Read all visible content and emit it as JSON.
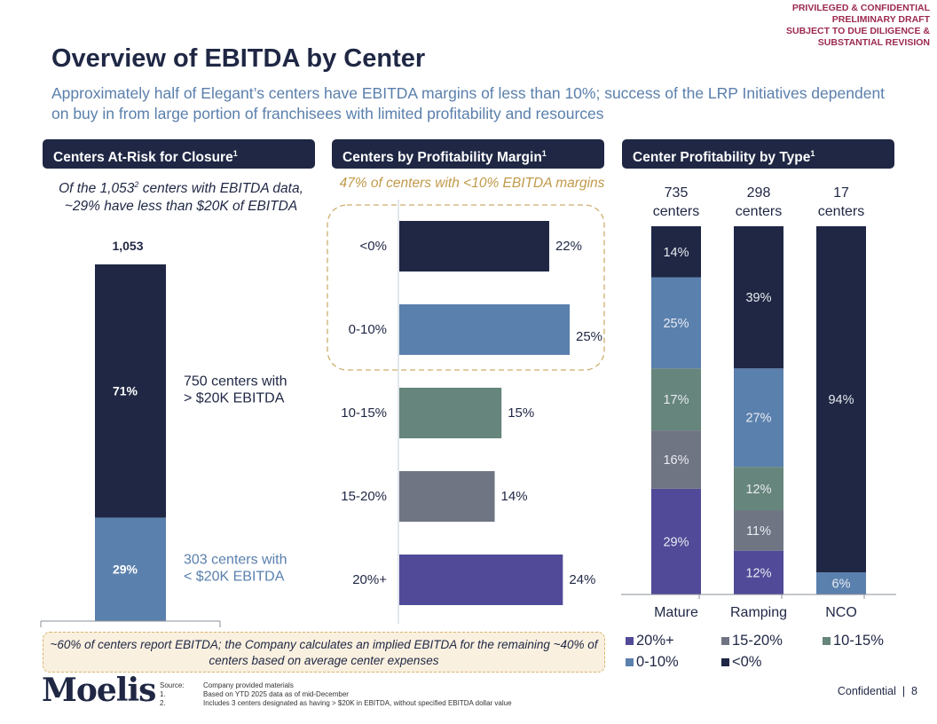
{
  "confidentiality_stamp": [
    "PRIVILEGED & CONFIDENTIAL",
    "PRELIMINARY DRAFT",
    "SUBJECT TO DUE DILIGENCE &",
    "SUBSTANTIAL REVISION"
  ],
  "title": "Overview of EBITDA by Center",
  "subtitle": "Approximately half of Elegant’s centers have EBITDA margins of less than 10%; success of the LRP Initiatives dependent on buy in from large portion of franchisees with limited profitability and resources",
  "sections": {
    "left": {
      "header": "Centers At-Risk for Closure",
      "header_sup": "1"
    },
    "middle": {
      "header": "Centers by Profitability Margin",
      "header_sup": "1"
    },
    "right": {
      "header": "Center Profitability by Type",
      "header_sup": "1"
    }
  },
  "left_caption": {
    "part1": "Of the 1,053",
    "sup": "2",
    "part2": " centers with EBITDA data, ~29% have less than $20K of EBITDA"
  },
  "middle_caption": "47% of centers with <10% EBITDA margins",
  "colors": {
    "navy": "#1f2744",
    "blue": "#5a80ad",
    "green": "#66857c",
    "gray": "#6f7583",
    "purple": "#504a98",
    "gold": "#c09a4a",
    "stamp_red": "#9c2a4e"
  },
  "chart_data": [
    {
      "type": "bar",
      "stacked": true,
      "title": "Centers At-Risk for Closure",
      "total_label": "1,053",
      "total": 1053,
      "segments": [
        {
          "name": "> $20K EBITDA",
          "value": 71,
          "label": "71%",
          "count": 750,
          "annotation": [
            "750 centers with",
            "> $20K EBITDA"
          ],
          "color": "#1f2744",
          "annotation_color": "#1f2744"
        },
        {
          "name": "< $20K EBITDA",
          "value": 29,
          "label": "29%",
          "count": 303,
          "annotation": [
            "303 centers with",
            "< $20K EBITDA"
          ],
          "color": "#5a80ad",
          "annotation_color": "#5a80ad"
        }
      ],
      "ylim": [
        0,
        100
      ]
    },
    {
      "type": "bar",
      "orientation": "horizontal",
      "title": "Centers by Profitability Margin",
      "categories": [
        "<0%",
        "0-10%",
        "10-15%",
        "15-20%",
        "20%+"
      ],
      "values": [
        22,
        25,
        15,
        14,
        24
      ],
      "labels": [
        "22%",
        "25%",
        "15%",
        "14%",
        "24%"
      ],
      "colors": [
        "#1f2744",
        "#5a80ad",
        "#66857c",
        "#6f7583",
        "#504a98"
      ],
      "highlight": {
        "categories": [
          "<0%",
          "0-10%"
        ],
        "annotation": "47% of centers with <10% EBITDA margins"
      },
      "xlim": [
        0,
        26
      ]
    },
    {
      "type": "bar",
      "stacked": true,
      "title": "Center Profitability by Type",
      "categories": [
        "Mature",
        "Ramping",
        "NCO"
      ],
      "category_counts": [
        [
          "735",
          "centers"
        ],
        [
          "298",
          "centers"
        ],
        [
          "17",
          "centers"
        ]
      ],
      "series": [
        {
          "name": "20%+",
          "values": [
            29,
            12,
            0
          ],
          "color": "#504a98"
        },
        {
          "name": "15-20%",
          "values": [
            16,
            11,
            0
          ],
          "color": "#6f7583"
        },
        {
          "name": "10-15%",
          "values": [
            17,
            12,
            0
          ],
          "color": "#66857c"
        },
        {
          "name": "0-10%",
          "values": [
            25,
            27,
            6
          ],
          "color": "#5a80ad"
        },
        {
          "name": "<0%",
          "values": [
            14,
            39,
            94
          ],
          "color": "#1f2744"
        }
      ],
      "legend_position": "bottom",
      "ylim": [
        0,
        100
      ]
    }
  ],
  "callout": "~60% of centers report EBITDA; the Company calculates an implied EBITDA for the remaining ~40% of centers based on average center expenses",
  "footer": {
    "logo": "Moelis",
    "footnotes": [
      {
        "key": "Source:",
        "text": "Company provided materials"
      },
      {
        "key": "1.",
        "text": "Based on YTD 2025 data as of mid-December"
      },
      {
        "key": "2.",
        "text": "Includes 3 centers designated as having > $20K in EBITDA, without specified EBITDA dollar value"
      }
    ],
    "confidential": "Confidential",
    "separator": "|",
    "page_number": "8"
  }
}
